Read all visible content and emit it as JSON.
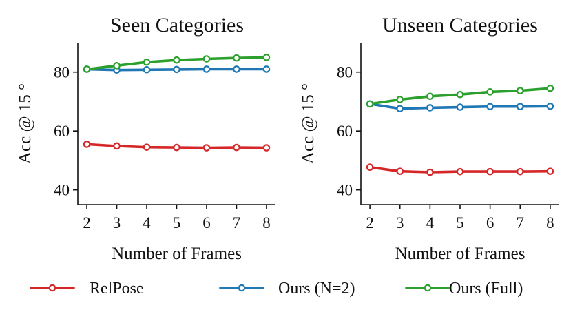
{
  "chart_data": [
    {
      "type": "line",
      "title": "Seen Categories",
      "xlabel": "Number of Frames",
      "ylabel": "Acc @ 15 °",
      "x": [
        2,
        3,
        4,
        5,
        6,
        7,
        8
      ],
      "xticks": [
        "2",
        "3",
        "4",
        "5",
        "6",
        "7",
        "8"
      ],
      "yticks": [
        "40",
        "60",
        "80"
      ],
      "ylim": [
        35,
        90
      ],
      "xlim": [
        1.7,
        8.3
      ],
      "grid": false,
      "series": [
        {
          "name": "RelPose",
          "color": "#d62728",
          "values": [
            55.5,
            54.9,
            54.5,
            54.4,
            54.3,
            54.4,
            54.3
          ]
        },
        {
          "name": "Ours (N=2)",
          "color": "#1f77b4",
          "values": [
            81.0,
            80.7,
            80.8,
            80.9,
            81.0,
            81.0,
            81.0
          ]
        },
        {
          "name": "Ours (Full)",
          "color": "#2ca02c",
          "values": [
            81.0,
            82.2,
            83.4,
            84.1,
            84.5,
            84.8,
            85.0
          ]
        }
      ]
    },
    {
      "type": "line",
      "title": "Unseen Categories",
      "xlabel": "Number of Frames",
      "ylabel": "Acc @ 15 °",
      "x": [
        2,
        3,
        4,
        5,
        6,
        7,
        8
      ],
      "xticks": [
        "2",
        "3",
        "4",
        "5",
        "6",
        "7",
        "8"
      ],
      "yticks": [
        "40",
        "60",
        "80"
      ],
      "ylim": [
        35,
        90
      ],
      "xlim": [
        1.7,
        8.3
      ],
      "grid": false,
      "series": [
        {
          "name": "RelPose",
          "color": "#d62728",
          "values": [
            47.7,
            46.3,
            46.0,
            46.2,
            46.2,
            46.2,
            46.3
          ]
        },
        {
          "name": "Ours (N=2)",
          "color": "#1f77b4",
          "values": [
            69.2,
            67.6,
            67.9,
            68.1,
            68.3,
            68.3,
            68.4
          ]
        },
        {
          "name": "Ours (Full)",
          "color": "#2ca02c",
          "values": [
            69.2,
            70.7,
            71.8,
            72.4,
            73.3,
            73.7,
            74.5
          ]
        }
      ]
    }
  ],
  "legend": {
    "placement": "bottom",
    "items": [
      {
        "label": "RelPose",
        "color": "#d62728"
      },
      {
        "label": "Ours (N=2)",
        "color": "#1f77b4"
      },
      {
        "label": "Ours (Full)",
        "color": "#2ca02c"
      }
    ]
  }
}
